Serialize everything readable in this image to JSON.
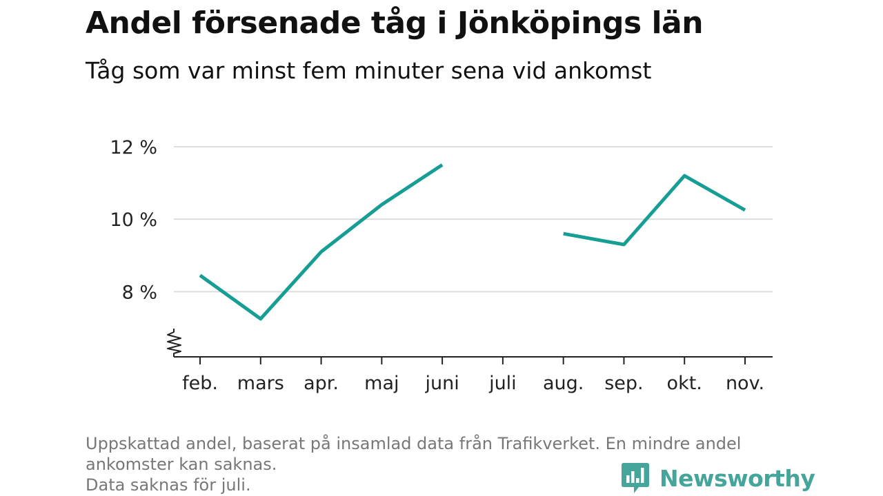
{
  "title": "Andel försenade tåg i Jönköpings län",
  "subtitle": "Tåg som var minst fem minuter sena vid ankomst",
  "footnote": [
    "Uppskattad andel, baserat på insamlad data från Trafikverket. En mindre andel",
    "ankomster kan saknas.",
    "Data saknas för juli."
  ],
  "brand": {
    "name": "Newsworthy",
    "icon": "newsworthy-logo-icon",
    "color": "#45a59b"
  },
  "colors": {
    "line": "#169e94",
    "grid": "#dddddd",
    "axis": "#222222"
  },
  "chart_data": {
    "type": "line",
    "categories": [
      "feb.",
      "mars",
      "apr.",
      "maj",
      "juni",
      "juli",
      "aug.",
      "sep.",
      "okt.",
      "nov."
    ],
    "series": [
      {
        "values": [
          8.45,
          7.25,
          9.1,
          10.4,
          11.5,
          null,
          9.6,
          9.3,
          11.2,
          10.25
        ]
      }
    ],
    "y_ticks": [
      8,
      10,
      12
    ],
    "y_tick_labels": [
      "8 %",
      "10 %",
      "12 %"
    ],
    "ylim": [
      6.2,
      12
    ],
    "y_axis_break": true,
    "grid": true,
    "xlabel": "",
    "ylabel": ""
  }
}
